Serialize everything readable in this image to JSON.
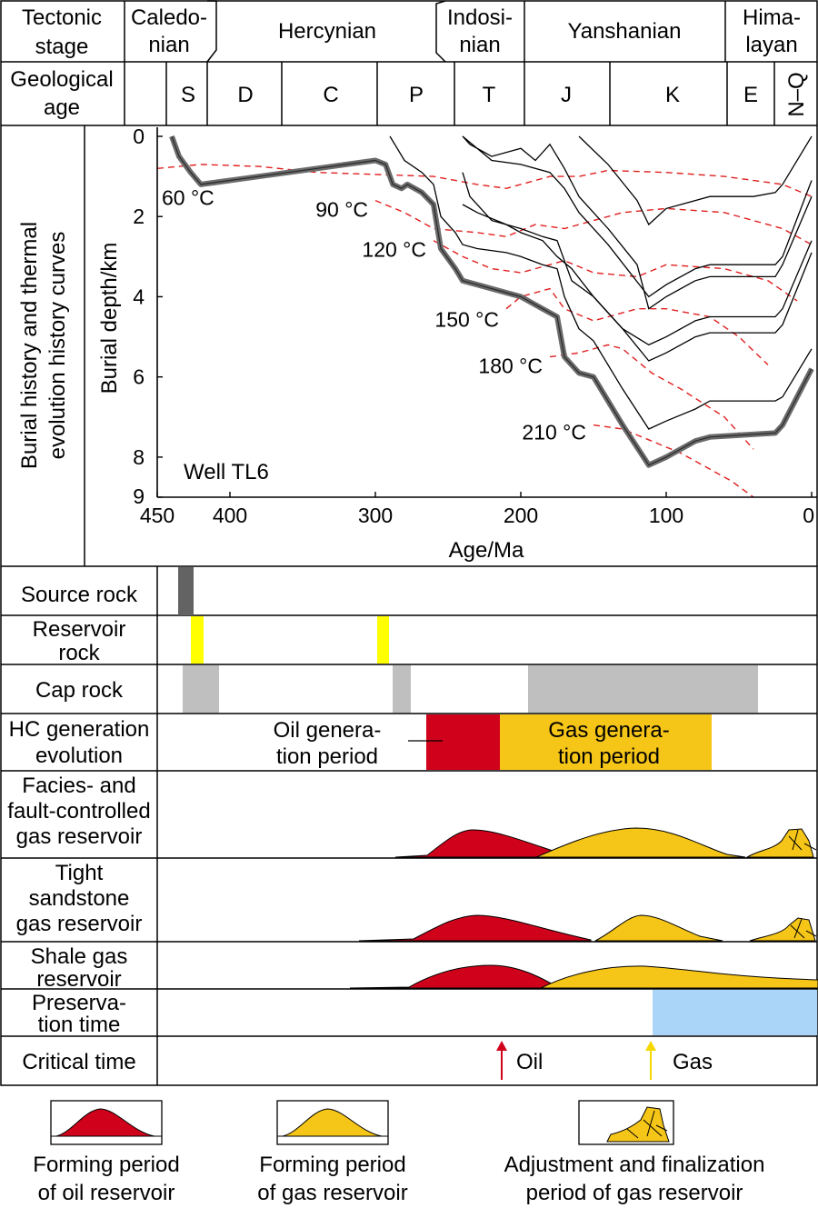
{
  "header": {
    "tectonic_label": [
      "Tectonic",
      "stage"
    ],
    "geo_label": [
      "Geological",
      "age"
    ],
    "stages": [
      {
        "name": "Caledonian",
        "lines": [
          "Caledo-",
          "nian"
        ]
      },
      {
        "name": "Hercynian",
        "lines": [
          "Hercynian"
        ]
      },
      {
        "name": "Indosinian",
        "lines": [
          "Indosi-",
          "nian"
        ]
      },
      {
        "name": "Yanshanian",
        "lines": [
          "Yanshanian"
        ]
      },
      {
        "name": "Himalayan",
        "lines": [
          "Hima-",
          "layan"
        ]
      }
    ],
    "periods": [
      "S",
      "D",
      "C",
      "P",
      "T",
      "J",
      "K",
      "E",
      "N–Q"
    ]
  },
  "left_panel_label": [
    "Burial history and thermal",
    "evolution history curves"
  ],
  "row_labels": {
    "source": [
      "Source rock"
    ],
    "reservoir": [
      "Reservoir",
      "rock"
    ],
    "cap": [
      "Cap rock"
    ],
    "hc": [
      "HC generation",
      "evolution"
    ],
    "facies": [
      "Facies- and",
      "fault-controlled",
      "gas reservoir"
    ],
    "tight": [
      "Tight",
      "sandstone",
      "gas reservoir"
    ],
    "shale": [
      "Shale gas",
      "reservoir"
    ],
    "preservation": [
      "Preserva-",
      "tion time"
    ],
    "critical": [
      "Critical time"
    ]
  },
  "hc_labels": {
    "oil": [
      "Oil genera-",
      "tion period"
    ],
    "gas": [
      "Gas genera-",
      "tion period"
    ]
  },
  "critical_labels": {
    "oil": "Oil",
    "gas": "Gas"
  },
  "legend": [
    {
      "lines": [
        "Forming period",
        "of oil reservoir"
      ],
      "icon": "oil-reservoir-icon"
    },
    {
      "lines": [
        "Forming period",
        "of gas reservoir"
      ],
      "icon": "gas-reservoir-icon"
    },
    {
      "lines": [
        "Adjustment and finalization",
        "period of gas reservoir"
      ],
      "icon": "adjustment-icon"
    }
  ],
  "colors": {
    "oil": "#d0021b",
    "gas": "#f5c518",
    "reservoir": "#ffff00",
    "source": "#636363",
    "cap": "#bfbfbf",
    "preservation": "#aad4f8",
    "isotherm": "#e02020",
    "well_curve": "#6b6b6b"
  },
  "chart_data": {
    "type": "line",
    "xlabel": "Age/Ma",
    "ylabel": "Burial depth/km",
    "xlim": [
      450,
      0
    ],
    "ylim": [
      0,
      9
    ],
    "x_ticks": [
      450,
      400,
      300,
      200,
      100,
      0
    ],
    "y_ticks": [
      0,
      2,
      4,
      6,
      8,
      9
    ],
    "annotation": "Well TL6",
    "well_curve": {
      "x": [
        440,
        435,
        427,
        420,
        400,
        340,
        300,
        293,
        288,
        282,
        278,
        268,
        260,
        255,
        245,
        240,
        230,
        210,
        200,
        185,
        175,
        170,
        160,
        150,
        130,
        112,
        100,
        80,
        70,
        25,
        20,
        0
      ],
      "y": [
        0,
        0.5,
        0.9,
        1.2,
        1.1,
        0.8,
        0.6,
        0.7,
        1.2,
        1.3,
        1.2,
        1.4,
        1.7,
        2.8,
        3.3,
        3.6,
        3.7,
        3.9,
        4.0,
        4.3,
        4.5,
        5.5,
        5.9,
        6.0,
        7.2,
        8.2,
        8.0,
        7.6,
        7.5,
        7.4,
        7.2,
        5.8
      ]
    },
    "horizon_curves": [
      {
        "x": [
          290,
          285,
          280,
          268,
          260,
          255,
          245,
          240,
          230,
          210,
          200,
          185,
          175,
          170,
          160,
          150,
          130,
          112,
          100,
          80,
          70,
          25,
          20,
          0
        ],
        "y": [
          0,
          0.3,
          0.6,
          0.9,
          1.2,
          2.0,
          2.4,
          2.7,
          2.8,
          2.9,
          3.0,
          3.2,
          3.3,
          4.0,
          4.8,
          5.1,
          6.3,
          7.3,
          7.1,
          6.8,
          6.6,
          6.6,
          6.5,
          5.3
        ]
      },
      {
        "x": [
          240,
          235,
          220,
          200,
          185,
          175,
          165,
          150,
          130,
          112,
          100,
          80,
          70,
          25,
          20,
          0
        ],
        "y": [
          0.9,
          1.5,
          2.1,
          2.3,
          2.5,
          2.6,
          3.6,
          4.0,
          4.8,
          5.6,
          5.4,
          5.0,
          4.9,
          4.9,
          4.7,
          2.9
        ]
      },
      {
        "x": [
          240,
          230,
          210,
          200,
          185,
          175,
          165,
          150,
          130,
          112,
          100,
          80,
          70,
          25,
          20,
          0
        ],
        "y": [
          1.7,
          1.9,
          2.2,
          2.4,
          2.6,
          3.0,
          3.3,
          4.0,
          4.8,
          5.2,
          5.0,
          4.6,
          4.5,
          4.5,
          4.3,
          2.6
        ]
      },
      {
        "x": [
          240,
          235,
          220,
          200,
          190,
          180,
          170,
          160,
          140,
          120,
          112,
          100,
          80,
          70,
          25,
          20,
          0
        ],
        "y": [
          0,
          0.2,
          0.5,
          0.3,
          0.6,
          0.2,
          0.8,
          1.5,
          2.3,
          3.2,
          4.3,
          4.0,
          3.6,
          3.5,
          3.5,
          3.2,
          1.5
        ]
      },
      {
        "x": [
          240,
          220,
          200,
          180,
          170,
          160,
          140,
          112,
          100,
          80,
          70,
          25,
          20,
          0
        ],
        "y": [
          0,
          0.6,
          0.7,
          0.9,
          1.3,
          1.9,
          2.7,
          4.0,
          3.7,
          3.3,
          3.2,
          3.2,
          3.0,
          1.1
        ]
      },
      {
        "x": [
          160,
          140,
          120,
          112,
          100,
          80,
          70,
          40,
          25,
          20,
          0
        ],
        "y": [
          0,
          0.7,
          1.6,
          2.2,
          1.8,
          1.6,
          1.5,
          1.5,
          1.4,
          1.2,
          0
        ]
      }
    ],
    "isotherms": [
      {
        "label": "60 °C",
        "x": [
          450,
          420,
          380,
          340,
          300,
          260,
          230,
          210,
          180,
          160,
          140,
          100,
          60,
          20,
          0
        ],
        "y": [
          0.8,
          0.7,
          0.75,
          0.9,
          0.95,
          1.0,
          1.2,
          1.3,
          1.0,
          1.0,
          0.85,
          0.9,
          1.0,
          1.2,
          1.5
        ]
      },
      {
        "label": "90 °C",
        "x": [
          300,
          280,
          260,
          230,
          210,
          190,
          170,
          150,
          130,
          100,
          60,
          20,
          0
        ],
        "y": [
          1.6,
          1.9,
          2.3,
          2.4,
          2.5,
          2.2,
          2.3,
          2.1,
          1.9,
          1.8,
          1.9,
          2.3,
          2.7
        ]
      },
      {
        "label": "120 °C",
        "x": [
          260,
          240,
          220,
          200,
          180,
          170,
          150,
          120,
          100,
          60,
          30,
          10
        ],
        "y": [
          2.6,
          3.0,
          3.3,
          3.4,
          3.2,
          3.1,
          3.4,
          3.5,
          3.2,
          3.3,
          3.6,
          4.1
        ]
      },
      {
        "label": "150 °C",
        "x": [
          210,
          200,
          180,
          170,
          150,
          120,
          100,
          70,
          50,
          30
        ],
        "y": [
          4.3,
          4.0,
          3.8,
          4.3,
          4.6,
          4.3,
          4.3,
          4.5,
          5.0,
          5.7
        ]
      },
      {
        "label": "180 °C",
        "x": [
          180,
          160,
          140,
          130,
          110,
          90,
          60,
          40
        ],
        "y": [
          5.5,
          5.4,
          5.2,
          5.3,
          5.9,
          6.3,
          7.0,
          7.8
        ]
      },
      {
        "label": "210 °C",
        "x": [
          150,
          130,
          110,
          90,
          70,
          55,
          40
        ],
        "y": [
          7.2,
          7.3,
          7.6,
          7.9,
          8.3,
          8.6,
          9.0
        ]
      }
    ]
  }
}
